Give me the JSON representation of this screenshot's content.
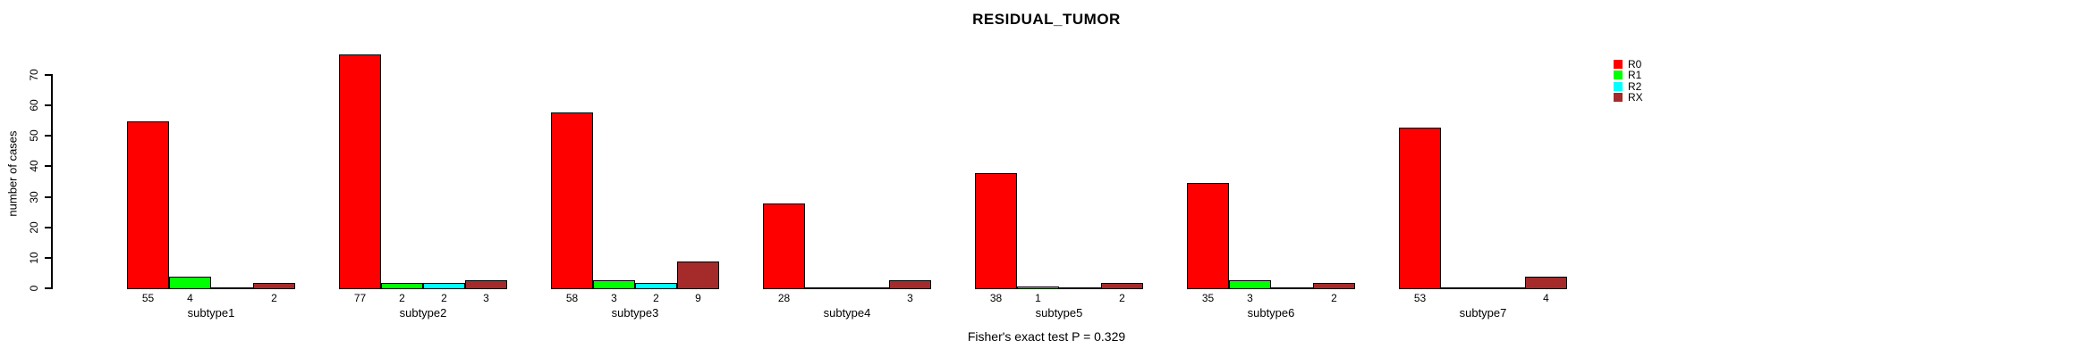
{
  "chart_data": {
    "type": "bar",
    "title": "RESIDUAL_TUMOR",
    "ylabel": "number of cases",
    "annotation": "Fisher's exact test P = 0.329",
    "ylim": [
      0,
      70
    ],
    "yticks": [
      0,
      10,
      20,
      30,
      40,
      50,
      60,
      70
    ],
    "categories": [
      "subtype1",
      "subtype2",
      "subtype3",
      "subtype4",
      "subtype5",
      "subtype6",
      "subtype7"
    ],
    "series": [
      {
        "name": "R0",
        "color": "#ff0000",
        "values": [
          55,
          77,
          58,
          28,
          38,
          35,
          53
        ]
      },
      {
        "name": "R1",
        "color": "#00ff00",
        "values": [
          4,
          2,
          3,
          0,
          1,
          3,
          0
        ]
      },
      {
        "name": "R2",
        "color": "#00ffff",
        "values": [
          0,
          2,
          2,
          0,
          0,
          0,
          0
        ]
      },
      {
        "name": "RX",
        "color": "#a52a2a",
        "values": [
          2,
          3,
          9,
          3,
          2,
          2,
          4
        ]
      }
    ],
    "bar_value_labels_shown_when_positive": true,
    "legend_position": "top-right",
    "grid": false,
    "background_color": "#ffffff",
    "axis_color": "#000000",
    "text_color": "#000000"
  }
}
